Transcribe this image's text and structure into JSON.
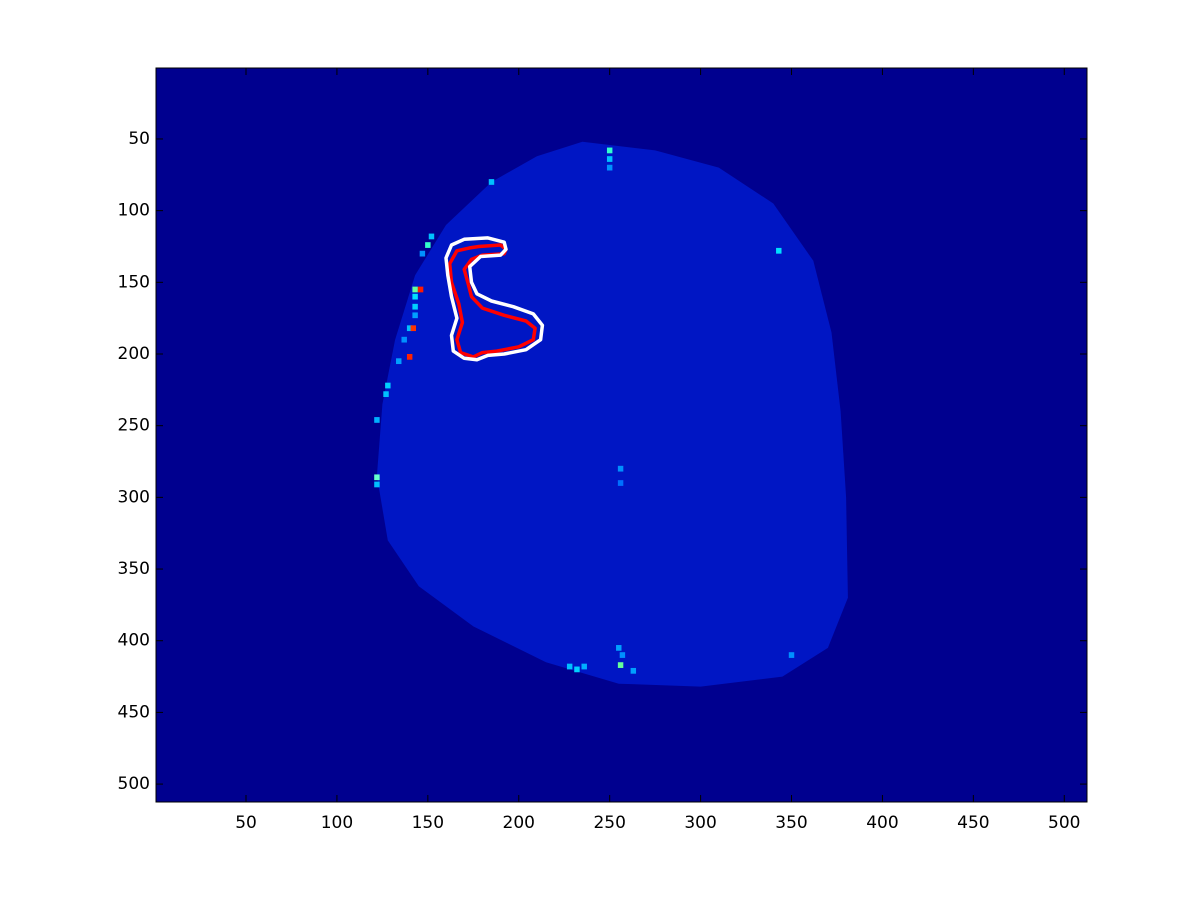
{
  "chart_data": {
    "type": "heatmap",
    "title": "",
    "xlabel": "",
    "ylabel": "",
    "colormap": "jet",
    "background_color": "#00008f",
    "xlim": [
      0.5,
      512.5
    ],
    "ylim": [
      512.5,
      0.5
    ],
    "y_reversed": true,
    "x_ticks": [
      50,
      100,
      150,
      200,
      250,
      300,
      350,
      400,
      450,
      500
    ],
    "x_tick_labels": [
      "50",
      "100",
      "150",
      "200",
      "250",
      "300",
      "350",
      "400",
      "450",
      "500"
    ],
    "y_ticks": [
      50,
      100,
      150,
      200,
      250,
      300,
      350,
      400,
      450,
      500
    ],
    "y_tick_labels": [
      "50",
      "100",
      "150",
      "200",
      "250",
      "300",
      "350",
      "400",
      "450",
      "500"
    ],
    "brain_region": {
      "boundary": [
        [
          235,
          52
        ],
        [
          275,
          58
        ],
        [
          310,
          70
        ],
        [
          340,
          95
        ],
        [
          362,
          135
        ],
        [
          372,
          185
        ],
        [
          377,
          240
        ],
        [
          380,
          300
        ],
        [
          381,
          370
        ],
        [
          370,
          405
        ],
        [
          345,
          425
        ],
        [
          300,
          432
        ],
        [
          255,
          430
        ],
        [
          215,
          415
        ],
        [
          175,
          390
        ],
        [
          145,
          362
        ],
        [
          128,
          330
        ],
        [
          122,
          285
        ],
        [
          125,
          235
        ],
        [
          132,
          190
        ],
        [
          143,
          145
        ],
        [
          160,
          110
        ],
        [
          185,
          80
        ],
        [
          210,
          62
        ]
      ],
      "fill_color": "#0016c4"
    },
    "bright_voxels": [
      {
        "x": 250,
        "y": 58,
        "color": "#33ffcc"
      },
      {
        "x": 250,
        "y": 64,
        "color": "#00c0ff"
      },
      {
        "x": 250,
        "y": 70,
        "color": "#0090ff"
      },
      {
        "x": 185,
        "y": 80,
        "color": "#00c0ff"
      },
      {
        "x": 152,
        "y": 118,
        "color": "#00c0ff"
      },
      {
        "x": 150,
        "y": 124,
        "color": "#33ffcc"
      },
      {
        "x": 147,
        "y": 130,
        "color": "#0090ff"
      },
      {
        "x": 143,
        "y": 155,
        "color": "#66ff99"
      },
      {
        "x": 146,
        "y": 155,
        "color": "#ff1a00"
      },
      {
        "x": 143,
        "y": 160,
        "color": "#00e0ff"
      },
      {
        "x": 143,
        "y": 167,
        "color": "#00d0ff"
      },
      {
        "x": 143,
        "y": 173,
        "color": "#00a0ff"
      },
      {
        "x": 140,
        "y": 182,
        "color": "#00c0ff"
      },
      {
        "x": 142,
        "y": 182,
        "color": "#ff3300"
      },
      {
        "x": 137,
        "y": 190,
        "color": "#0090ff"
      },
      {
        "x": 140,
        "y": 202,
        "color": "#ff2200"
      },
      {
        "x": 134,
        "y": 205,
        "color": "#00a0ff"
      },
      {
        "x": 128,
        "y": 222,
        "color": "#00d0ff"
      },
      {
        "x": 127,
        "y": 228,
        "color": "#00c0ff"
      },
      {
        "x": 122,
        "y": 246,
        "color": "#00b0ff"
      },
      {
        "x": 122,
        "y": 286,
        "color": "#66ffcc"
      },
      {
        "x": 122,
        "y": 291,
        "color": "#00c0ff"
      },
      {
        "x": 343,
        "y": 128,
        "color": "#00e0ff"
      },
      {
        "x": 256,
        "y": 280,
        "color": "#0090ff"
      },
      {
        "x": 256,
        "y": 290,
        "color": "#0070ff"
      },
      {
        "x": 255,
        "y": 405,
        "color": "#00a0ff"
      },
      {
        "x": 257,
        "y": 410,
        "color": "#0090ff"
      },
      {
        "x": 256,
        "y": 417,
        "color": "#66ff99"
      },
      {
        "x": 228,
        "y": 418,
        "color": "#00c0ff"
      },
      {
        "x": 232,
        "y": 420,
        "color": "#00d0ff"
      },
      {
        "x": 236,
        "y": 418,
        "color": "#00b0ff"
      },
      {
        "x": 263,
        "y": 421,
        "color": "#00a0ff"
      },
      {
        "x": 350,
        "y": 410,
        "color": "#0090ff"
      }
    ],
    "contours": [
      {
        "color": "#ff0000",
        "points": [
          [
            178,
            125
          ],
          [
            190,
            124
          ],
          [
            193,
            127
          ],
          [
            192,
            130
          ],
          [
            180,
            131
          ],
          [
            174,
            134
          ],
          [
            170,
            141
          ],
          [
            172,
            150
          ],
          [
            174,
            160
          ],
          [
            180,
            168
          ],
          [
            192,
            173
          ],
          [
            204,
            177
          ],
          [
            209,
            182
          ],
          [
            208,
            190
          ],
          [
            200,
            195
          ],
          [
            188,
            198
          ],
          [
            180,
            199
          ],
          [
            175,
            202
          ],
          [
            168,
            199
          ],
          [
            166,
            190
          ],
          [
            169,
            178
          ],
          [
            167,
            165
          ],
          [
            163,
            150
          ],
          [
            162,
            137
          ],
          [
            166,
            128
          ],
          [
            173,
            126
          ]
        ]
      },
      {
        "color": "#ffffff",
        "points": [
          [
            170,
            120
          ],
          [
            183,
            119
          ],
          [
            192,
            122
          ],
          [
            193,
            127
          ],
          [
            190,
            131
          ],
          [
            179,
            132
          ],
          [
            173,
            139
          ],
          [
            174,
            150
          ],
          [
            177,
            158
          ],
          [
            185,
            163
          ],
          [
            197,
            167
          ],
          [
            208,
            172
          ],
          [
            213,
            180
          ],
          [
            212,
            190
          ],
          [
            204,
            197
          ],
          [
            192,
            200
          ],
          [
            183,
            201
          ],
          [
            177,
            204
          ],
          [
            170,
            203
          ],
          [
            164,
            198
          ],
          [
            163,
            187
          ],
          [
            166,
            175
          ],
          [
            163,
            160
          ],
          [
            161,
            145
          ],
          [
            160,
            133
          ],
          [
            163,
            124
          ]
        ]
      }
    ]
  }
}
